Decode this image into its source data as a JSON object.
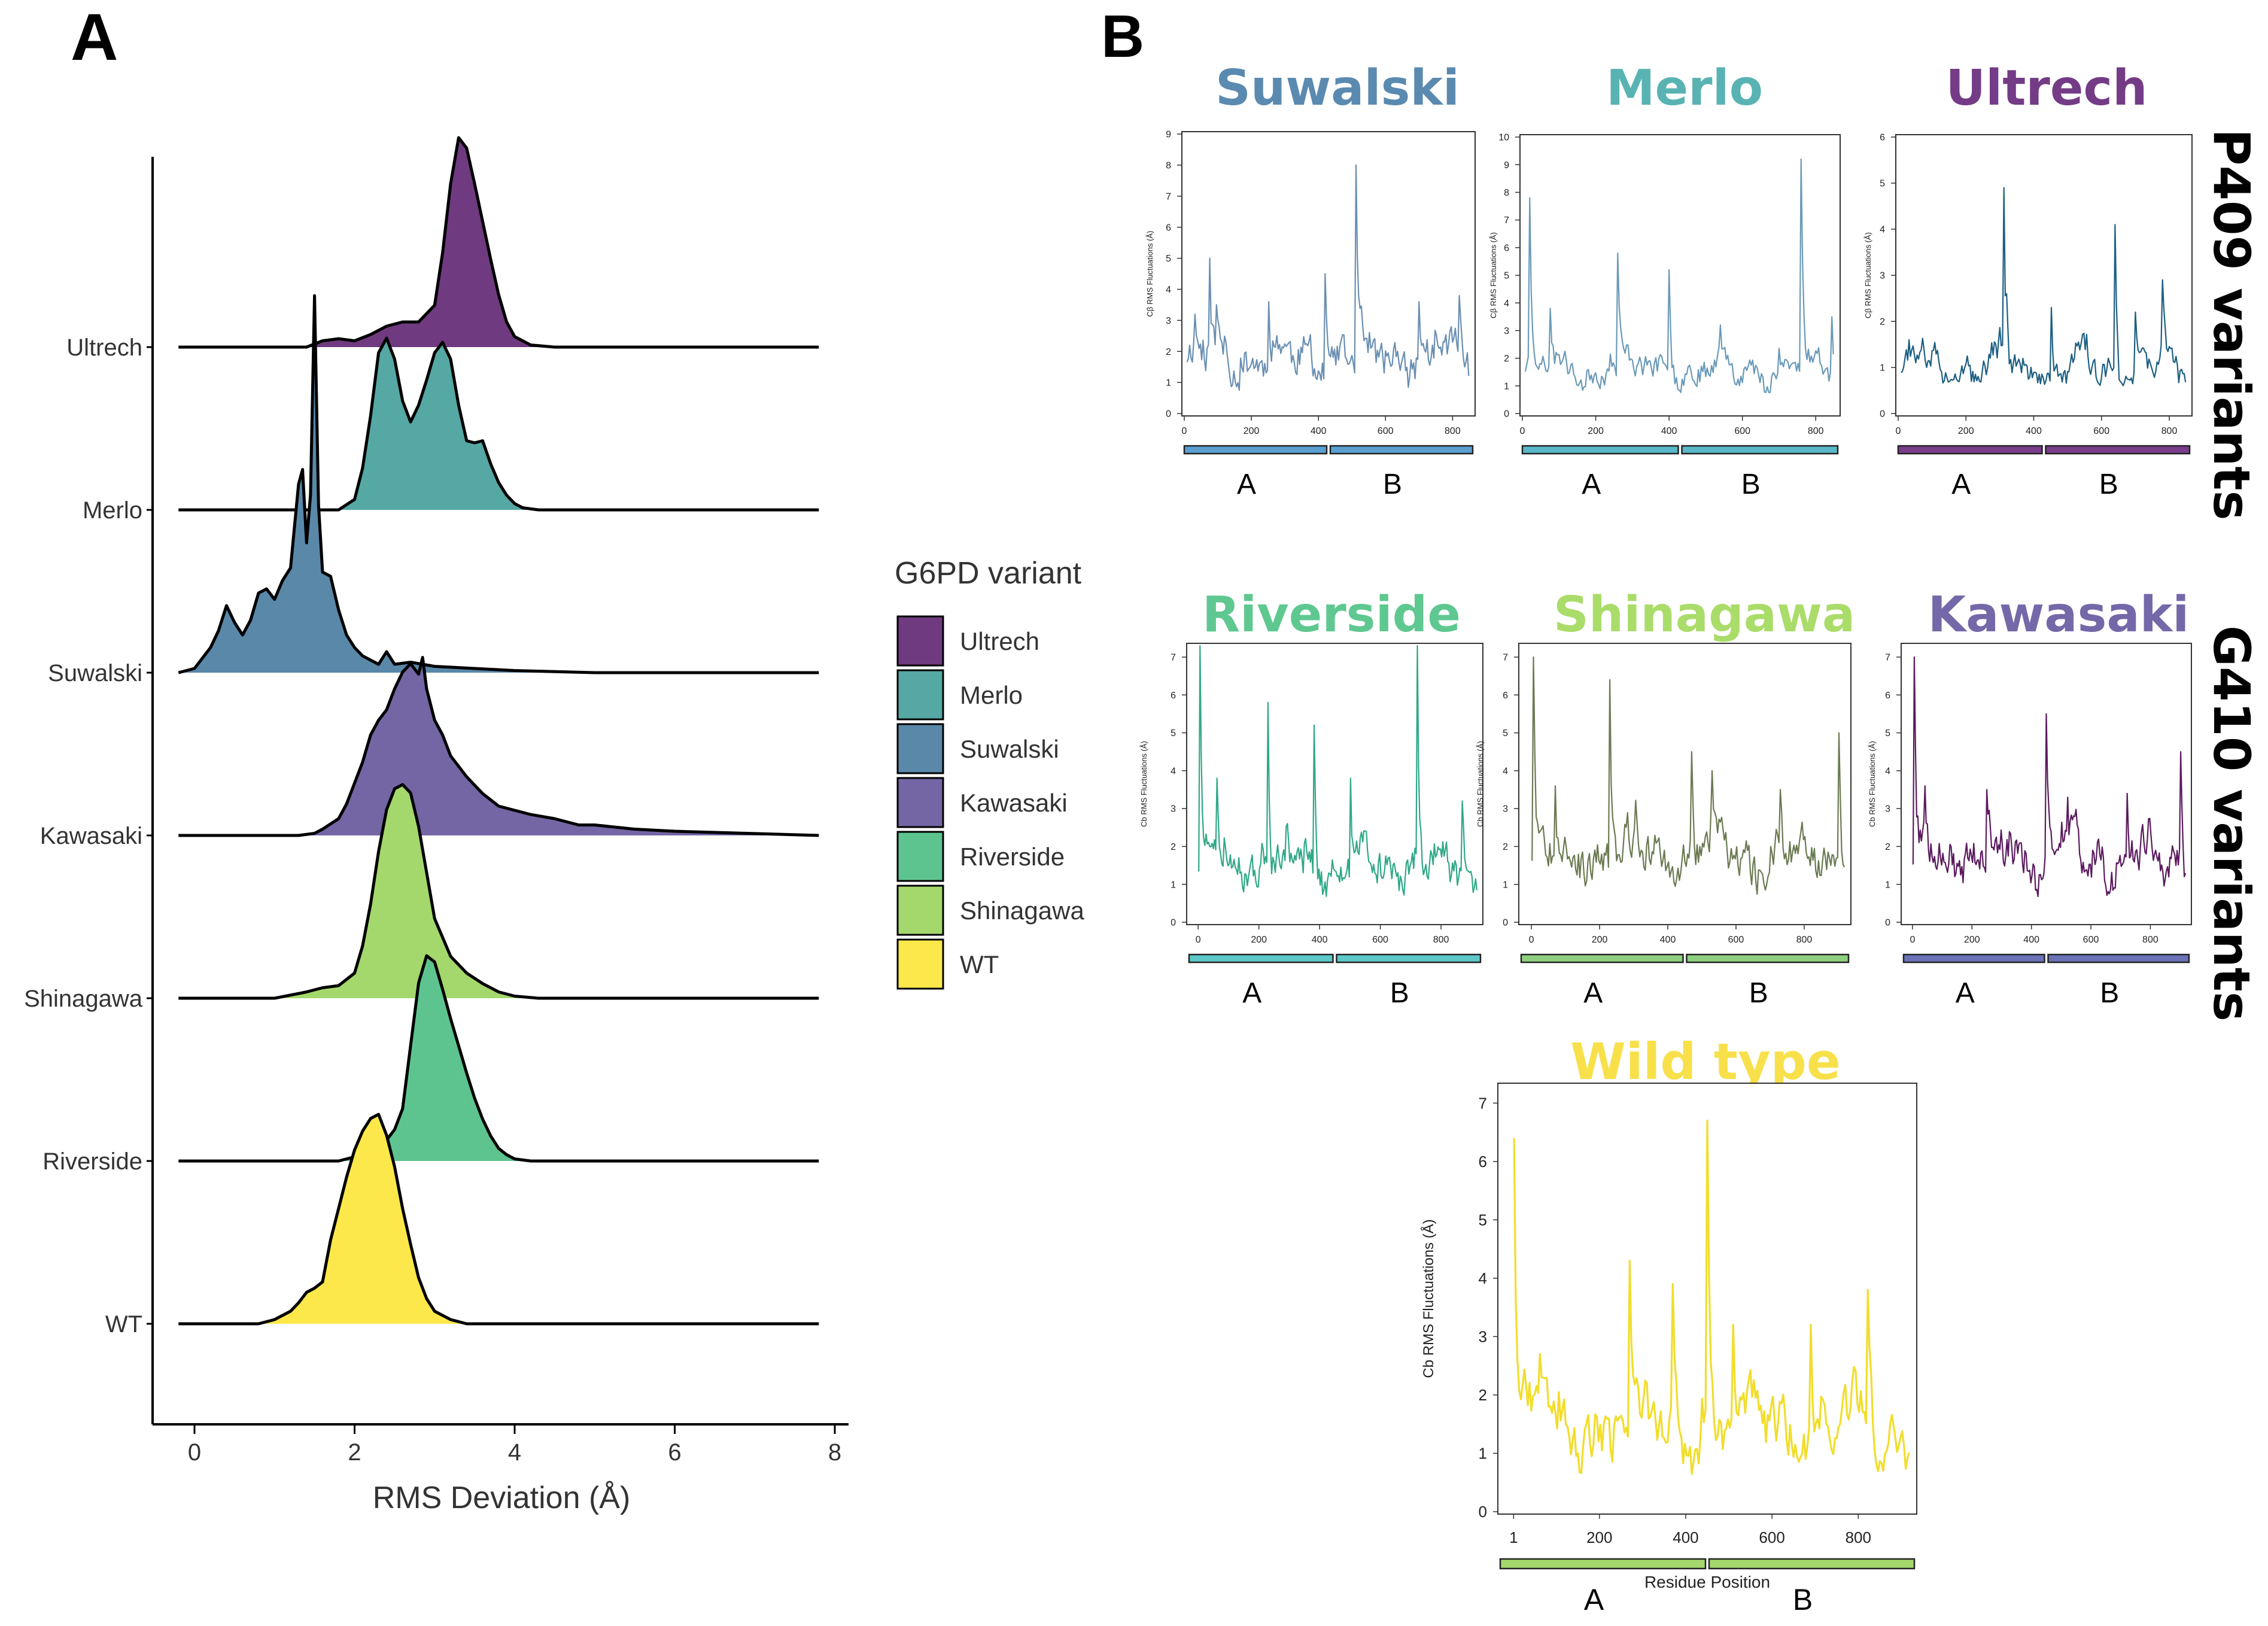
{
  "panels": {
    "a_label": "A",
    "b_label": "B"
  },
  "chart_data": [
    {
      "type": "area",
      "subtype": "ridgeline",
      "xlabel": "RMS Deviation (Å)",
      "xlim": [
        -0.5,
        8.2
      ],
      "xticks": [
        "0",
        "2",
        "4",
        "6",
        "8"
      ],
      "legend_title": "G6PD variant",
      "legend": [
        {
          "name": "Ultrech",
          "color": "#6f3a7f"
        },
        {
          "name": "Merlo",
          "color": "#55a8a4"
        },
        {
          "name": "Suwalski",
          "color": "#5a88a8"
        },
        {
          "name": "Kawasaki",
          "color": "#7466a4"
        },
        {
          "name": "Riverside",
          "color": "#5ec48f"
        },
        {
          "name": "Shinagawa",
          "color": "#a4d86c"
        },
        {
          "name": "WT",
          "color": "#fce84a"
        }
      ],
      "series": [
        {
          "name": "Ultrech",
          "color": "#6f3a7f",
          "x": [
            -0.2,
            1.4,
            1.6,
            1.8,
            2.0,
            2.2,
            2.4,
            2.6,
            2.8,
            3.0,
            3.1,
            3.2,
            3.3,
            3.4,
            3.5,
            3.6,
            3.7,
            3.8,
            3.9,
            4.0,
            4.2,
            4.5,
            7.8
          ],
          "y": [
            0,
            0,
            0.03,
            0.04,
            0.03,
            0.06,
            0.1,
            0.12,
            0.12,
            0.2,
            0.45,
            0.78,
            1.0,
            0.95,
            0.78,
            0.6,
            0.42,
            0.25,
            0.12,
            0.05,
            0.01,
            0,
            0
          ]
        },
        {
          "name": "Merlo",
          "color": "#55a8a4",
          "x": [
            -0.2,
            1.8,
            2.0,
            2.1,
            2.2,
            2.3,
            2.4,
            2.5,
            2.6,
            2.7,
            2.8,
            2.9,
            3.0,
            3.1,
            3.2,
            3.3,
            3.4,
            3.5,
            3.6,
            3.7,
            3.8,
            3.9,
            4.0,
            4.1,
            4.3,
            7.8
          ],
          "y": [
            0,
            0,
            0.05,
            0.2,
            0.45,
            0.75,
            0.82,
            0.72,
            0.52,
            0.42,
            0.5,
            0.62,
            0.75,
            0.8,
            0.72,
            0.5,
            0.33,
            0.32,
            0.33,
            0.22,
            0.13,
            0.07,
            0.03,
            0.01,
            0,
            0
          ]
        },
        {
          "name": "Suwalski",
          "color": "#5a88a8",
          "x": [
            -0.2,
            0,
            0.1,
            0.2,
            0.3,
            0.4,
            0.5,
            0.6,
            0.7,
            0.8,
            0.9,
            1.0,
            1.1,
            1.2,
            1.3,
            1.35,
            1.4,
            1.45,
            1.5,
            1.55,
            1.6,
            1.7,
            1.8,
            1.9,
            2.0,
            2.1,
            2.2,
            2.3,
            2.4,
            2.5,
            2.7,
            3.0,
            3.5,
            4.0,
            5.0,
            7.8
          ],
          "y": [
            0,
            0.02,
            0.07,
            0.12,
            0.2,
            0.32,
            0.24,
            0.18,
            0.25,
            0.38,
            0.4,
            0.35,
            0.44,
            0.5,
            0.9,
            0.97,
            0.62,
            0.85,
            1.8,
            0.8,
            0.48,
            0.46,
            0.3,
            0.18,
            0.12,
            0.08,
            0.06,
            0.04,
            0.1,
            0.04,
            0.05,
            0.03,
            0.02,
            0.01,
            0,
            0
          ]
        },
        {
          "name": "Kawasaki",
          "color": "#7466a4",
          "x": [
            -0.2,
            1.3,
            1.5,
            1.6,
            1.8,
            1.9,
            2.0,
            2.1,
            2.2,
            2.3,
            2.4,
            2.5,
            2.6,
            2.7,
            2.8,
            2.85,
            2.9,
            3.0,
            3.1,
            3.2,
            3.4,
            3.6,
            3.8,
            4.0,
            4.2,
            4.5,
            4.8,
            5.0,
            5.5,
            6.0,
            7.8
          ],
          "y": [
            0,
            0,
            0.01,
            0.03,
            0.08,
            0.15,
            0.25,
            0.35,
            0.48,
            0.55,
            0.6,
            0.7,
            0.78,
            0.82,
            0.77,
            0.85,
            0.7,
            0.55,
            0.48,
            0.38,
            0.28,
            0.2,
            0.14,
            0.12,
            0.1,
            0.08,
            0.05,
            0.05,
            0.03,
            0.02,
            0
          ]
        },
        {
          "name": "Shinagawa",
          "color": "#a4d86c",
          "x": [
            -0.2,
            1.0,
            1.4,
            1.6,
            1.8,
            2.0,
            2.1,
            2.2,
            2.3,
            2.4,
            2.5,
            2.6,
            2.7,
            2.8,
            2.9,
            3.0,
            3.2,
            3.4,
            3.6,
            3.8,
            4.0,
            4.3,
            7.8
          ],
          "y": [
            0,
            0,
            0.03,
            0.05,
            0.06,
            0.12,
            0.25,
            0.45,
            0.7,
            0.9,
            1.0,
            1.02,
            0.98,
            0.82,
            0.6,
            0.38,
            0.2,
            0.12,
            0.07,
            0.03,
            0.01,
            0,
            0
          ]
        },
        {
          "name": "Riverside",
          "color": "#5ec48f",
          "x": [
            -0.2,
            1.8,
            2.0,
            2.2,
            2.4,
            2.5,
            2.6,
            2.7,
            2.8,
            2.9,
            3.0,
            3.1,
            3.2,
            3.3,
            3.4,
            3.5,
            3.6,
            3.7,
            3.8,
            3.9,
            4.0,
            4.2,
            7.8
          ],
          "y": [
            0,
            0,
            0.02,
            0.04,
            0.1,
            0.15,
            0.25,
            0.55,
            0.85,
            0.98,
            0.95,
            0.82,
            0.68,
            0.55,
            0.42,
            0.3,
            0.2,
            0.12,
            0.06,
            0.03,
            0.01,
            0,
            0
          ]
        },
        {
          "name": "WT",
          "color": "#fce84a",
          "x": [
            -0.2,
            0.8,
            1.0,
            1.2,
            1.3,
            1.4,
            1.5,
            1.6,
            1.7,
            1.8,
            1.9,
            2.0,
            2.1,
            2.2,
            2.3,
            2.4,
            2.5,
            2.6,
            2.7,
            2.8,
            2.9,
            3.0,
            3.2,
            3.4,
            7.8
          ],
          "y": [
            0,
            0,
            0.02,
            0.06,
            0.1,
            0.15,
            0.17,
            0.2,
            0.4,
            0.55,
            0.7,
            0.83,
            0.92,
            0.98,
            1.0,
            0.9,
            0.75,
            0.55,
            0.38,
            0.22,
            0.12,
            0.06,
            0.02,
            0,
            0
          ]
        }
      ]
    },
    {
      "type": "line",
      "title": "Suwalski",
      "title_color": "#5b8ab0",
      "ylabel": "Cβ RMS Fluctuations (Å)",
      "xlim": [
        0,
        860
      ],
      "ylim": [
        0,
        9
      ],
      "yticks": [
        "0",
        "1",
        "2",
        "3",
        "4",
        "5",
        "6",
        "7",
        "8",
        "9"
      ],
      "xticks": [
        "0",
        "200",
        "400",
        "600",
        "800"
      ],
      "line_color": "#6a8fb2",
      "segments": [
        {
          "label": "A",
          "range": [
            0,
            430
          ]
        },
        {
          "label": "B",
          "range": [
            430,
            860
          ]
        }
      ],
      "segment_color": "#5a9fd0",
      "seed": 11,
      "base": 1.8,
      "spread": 0.9,
      "spikes": [
        [
          30,
          3.2
        ],
        [
          75,
          5.0
        ],
        [
          95,
          3.5
        ],
        [
          250,
          3.6
        ],
        [
          420,
          4.5
        ],
        [
          510,
          8.0
        ],
        [
          700,
          3.6
        ],
        [
          820,
          3.8
        ]
      ]
    },
    {
      "type": "line",
      "title": "Merlo",
      "title_color": "#5ab3b3",
      "ylabel": "Cβ RMS Fluctuations (Å)",
      "xlim": [
        0,
        860
      ],
      "ylim": [
        0,
        10
      ],
      "yticks": [
        "0",
        "1",
        "2",
        "3",
        "4",
        "5",
        "6",
        "7",
        "8",
        "9",
        "10"
      ],
      "xticks": [
        "0",
        "200",
        "400",
        "600",
        "800"
      ],
      "line_color": "#6a9ab8",
      "segments": [
        {
          "label": "A",
          "range": [
            0,
            430
          ]
        },
        {
          "label": "B",
          "range": [
            430,
            860
          ]
        }
      ],
      "segment_color": "#5ab8c8",
      "seed": 23,
      "base": 1.6,
      "spread": 0.7,
      "spikes": [
        [
          20,
          7.8
        ],
        [
          75,
          3.8
        ],
        [
          260,
          5.8
        ],
        [
          400,
          5.2
        ],
        [
          540,
          3.2
        ],
        [
          760,
          9.2
        ],
        [
          845,
          3.5
        ]
      ]
    },
    {
      "type": "line",
      "title": "Ultrech",
      "title_color": "#743c86",
      "ylabel": "Cβ RMS Fluctuations (Å)",
      "xlim": [
        0,
        860
      ],
      "ylim": [
        0,
        6
      ],
      "yticks": [
        "0",
        "1",
        "2",
        "3",
        "4",
        "5",
        "6"
      ],
      "xticks": [
        "0",
        "200",
        "400",
        "600",
        "800"
      ],
      "line_color": "#1d5f82",
      "segments": [
        {
          "label": "A",
          "range": [
            0,
            430
          ]
        },
        {
          "label": "B",
          "range": [
            430,
            860
          ]
        }
      ],
      "segment_color": "#7a3d8c",
      "seed": 37,
      "base": 0.9,
      "spread": 0.45,
      "spikes": [
        [
          30,
          1.6
        ],
        [
          310,
          4.9
        ],
        [
          320,
          2.6
        ],
        [
          450,
          2.3
        ],
        [
          640,
          4.1
        ],
        [
          780,
          2.9
        ],
        [
          700,
          2.2
        ]
      ]
    },
    {
      "type": "line",
      "title": "Riverside",
      "title_color": "#5ec890",
      "ylabel": "Cb RMS Fluctuations (Å)",
      "xlim": [
        -30,
        930
      ],
      "ylim": [
        0,
        7.3
      ],
      "yticks": [
        "0",
        "1",
        "2",
        "3",
        "4",
        "5",
        "6",
        "7"
      ],
      "xticks": [
        "0",
        "200",
        "400",
        "600",
        "800"
      ],
      "line_color": "#2fa888",
      "segments": [
        {
          "label": "A",
          "range": [
            -30,
            450
          ]
        },
        {
          "label": "B",
          "range": [
            450,
            930
          ]
        }
      ],
      "segment_color": "#5ec8c8",
      "seed": 51,
      "base": 1.5,
      "spread": 0.7,
      "spikes": [
        [
          5,
          7.3
        ],
        [
          60,
          3.8
        ],
        [
          230,
          5.8
        ],
        [
          380,
          5.2
        ],
        [
          500,
          3.8
        ],
        [
          720,
          7.3
        ],
        [
          870,
          3.2
        ]
      ]
    },
    {
      "type": "line",
      "title": "Shinagawa",
      "title_color": "#aadc6a",
      "ylabel": "Cb RMS Fluctuations (Å)",
      "xlim": [
        -30,
        930
      ],
      "ylim": [
        0,
        7.3
      ],
      "yticks": [
        "0",
        "1",
        "2",
        "3",
        "4",
        "5",
        "6",
        "7"
      ],
      "xticks": [
        "0",
        "200",
        "400",
        "600",
        "800"
      ],
      "line_color": "#6a7a52",
      "segments": [
        {
          "label": "A",
          "range": [
            -30,
            450
          ]
        },
        {
          "label": "B",
          "range": [
            450,
            930
          ]
        }
      ],
      "segment_color": "#8ed080",
      "seed": 67,
      "base": 1.8,
      "spread": 0.8,
      "spikes": [
        [
          5,
          7.0
        ],
        [
          70,
          3.6
        ],
        [
          230,
          6.4
        ],
        [
          470,
          4.5
        ],
        [
          530,
          4.0
        ],
        [
          730,
          3.5
        ],
        [
          900,
          5.0
        ]
      ]
    },
    {
      "type": "line",
      "title": "Kawasaki",
      "title_color": "#7568a8",
      "ylabel": "Cb RMS Fluctuations (Å)",
      "xlim": [
        -30,
        930
      ],
      "ylim": [
        0,
        7.3
      ],
      "yticks": [
        "0",
        "1",
        "2",
        "3",
        "4",
        "5",
        "6",
        "7"
      ],
      "xticks": [
        "0",
        "200",
        "400",
        "600",
        "800"
      ],
      "line_color": "#5a1a5e",
      "segments": [
        {
          "label": "A",
          "range": [
            -30,
            450
          ]
        },
        {
          "label": "B",
          "range": [
            450,
            930
          ]
        }
      ],
      "segment_color": "#6a72b8",
      "seed": 79,
      "base": 1.7,
      "spread": 0.8,
      "spikes": [
        [
          5,
          7.0
        ],
        [
          40,
          3.6
        ],
        [
          250,
          3.5
        ],
        [
          450,
          5.5
        ],
        [
          520,
          3.3
        ],
        [
          720,
          3.4
        ],
        [
          900,
          4.5
        ]
      ]
    },
    {
      "type": "line",
      "title": "Wild type",
      "title_color": "#f8e04a",
      "ylabel": "Cb RMS Fluctuations (Å)",
      "xlabel": "Residue Position",
      "xlim": [
        -30,
        930
      ],
      "ylim": [
        0,
        7.3
      ],
      "yticks": [
        "0",
        "1",
        "2",
        "3",
        "4",
        "5",
        "6",
        "7"
      ],
      "xticks": [
        "1",
        "200",
        "400",
        "600",
        "800"
      ],
      "xtick_values": [
        1,
        200,
        400,
        600,
        800
      ],
      "line_color": "#f2dd2a",
      "segments": [
        {
          "label": "A",
          "range": [
            -30,
            450
          ]
        },
        {
          "label": "B",
          "range": [
            450,
            930
          ]
        }
      ],
      "segment_color": "#a4d86c",
      "seed": 93,
      "base": 1.5,
      "spread": 0.7,
      "spikes": [
        [
          3,
          6.4
        ],
        [
          60,
          2.7
        ],
        [
          270,
          4.3
        ],
        [
          370,
          3.9
        ],
        [
          450,
          6.7
        ],
        [
          510,
          3.2
        ],
        [
          690,
          3.2
        ],
        [
          820,
          3.8
        ]
      ]
    }
  ],
  "side_labels": {
    "top": "P409 variants",
    "middle": "G410 variants"
  }
}
